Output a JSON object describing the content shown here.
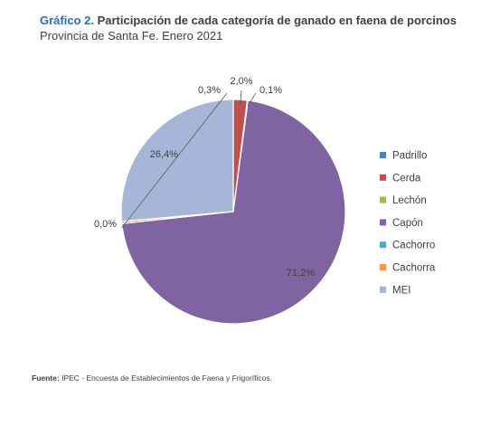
{
  "header": {
    "title_prefix": "Gráfico 2.",
    "title_text": "Participación de cada categoría de ganado en faena de porcinos",
    "subtitle": "Provincia de Santa Fe. Enero 2021"
  },
  "source": {
    "label": "Fuente:",
    "text": "IPEC - Encuesta de Establecimientos de Faena y Frigoríficos."
  },
  "chart_data": {
    "type": "pie",
    "legend_position": "right",
    "slices": [
      {
        "name": "Padrillo",
        "value": 0.0,
        "label": "",
        "color": "#4f81bd"
      },
      {
        "name": "Cerda",
        "value": 2.0,
        "label": "2,0%",
        "color": "#c0504d"
      },
      {
        "name": "Lechón",
        "value": 0.1,
        "label": "0,1%",
        "color": "#9bbb59"
      },
      {
        "name": "Capón",
        "value": 71.2,
        "label": "71,2%",
        "color": "#8064a2"
      },
      {
        "name": "Cachorro",
        "value": 0.0,
        "label": "0,0%",
        "color": "#4bacc6"
      },
      {
        "name": "Cachorra",
        "value": 0.3,
        "label": "0,3%",
        "color": "#f79646"
      },
      {
        "name": "MEI",
        "value": 26.4,
        "label": "26,4%",
        "color": "#a5b6d9"
      }
    ]
  }
}
